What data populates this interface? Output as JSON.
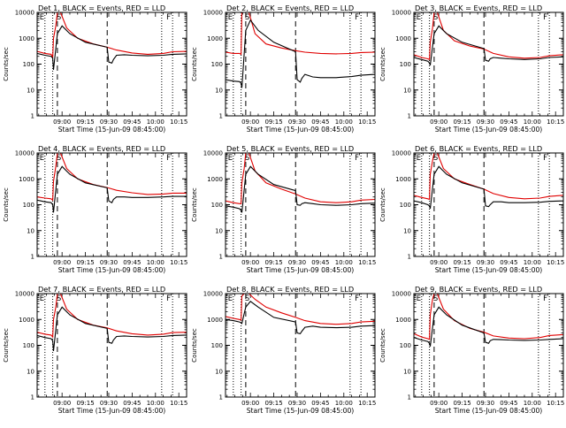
{
  "colors": {
    "background": "#ffffff",
    "axes": "#000000",
    "events": "#000000",
    "lld": "#e00000"
  },
  "shared": {
    "xlabel": "Start Time (15-Jun-09 08:45:00)",
    "ylabel": "Counts/sec",
    "x_tick_labels": [
      "09:00",
      "09:15",
      "09:30",
      "09:45",
      "10:00",
      "10:15"
    ],
    "y_tick_labels": [
      "1",
      "10",
      "100",
      "1000",
      "10000"
    ],
    "marker_E": "E",
    "marker_S": "S",
    "marker_F": "F"
  },
  "chart_data": [
    {
      "type": "line",
      "title": "Det 1, BLACK = Events, RED = LLD",
      "x_unit": "minutes after 08:45:00",
      "xlim": [
        -1,
        95
      ],
      "ylim": [
        1,
        10000
      ],
      "yscale": "log",
      "dotted_lines": [
        4,
        9,
        79,
        86
      ],
      "dashed_lines": [
        12,
        44
      ],
      "marker_positions": {
        "E": 0,
        "S": 12,
        "F": 86
      },
      "series": [
        {
          "x": [
            -1,
            4,
            8,
            9,
            9.5,
            11,
            12,
            14,
            18,
            25,
            35,
            44,
            50,
            60,
            70,
            80,
            86,
            95
          ],
          "values": [
            310,
            260,
            240,
            180,
            1000,
            3000,
            10000,
            10000,
            2500,
            1000,
            600,
            450,
            350,
            270,
            240,
            260,
            300,
            310
          ]
        },
        {
          "x": [
            -1,
            4,
            8,
            9,
            9.5,
            12,
            15,
            20,
            30,
            44,
            45,
            47,
            48,
            50,
            55,
            60,
            70,
            80,
            86,
            95
          ],
          "values": [
            260,
            220,
            200,
            170,
            60,
            1500,
            3000,
            1500,
            700,
            450,
            120,
            110,
            150,
            220,
            230,
            220,
            210,
            220,
            240,
            250
          ]
        }
      ]
    },
    {
      "type": "line",
      "title": "Det 2, BLACK = Events, RED = LLD",
      "x_unit": "minutes after 08:45:00",
      "xlim": [
        -1,
        95
      ],
      "ylim": [
        1,
        10000
      ],
      "yscale": "log",
      "dotted_lines": [
        4,
        9,
        79,
        86
      ],
      "dashed_lines": [
        12,
        44
      ],
      "marker_positions": {
        "E": 0,
        "S": 12,
        "F": 86
      },
      "series": [
        {
          "x": [
            -1,
            4,
            8,
            9,
            9.5,
            11,
            12,
            14,
            18,
            25,
            35,
            44,
            50,
            60,
            70,
            80,
            86,
            95
          ],
          "values": [
            290,
            260,
            260,
            240,
            10000,
            10000,
            10000,
            10000,
            1500,
            600,
            420,
            330,
            290,
            260,
            250,
            260,
            280,
            290
          ]
        },
        {
          "x": [
            -1,
            4,
            8,
            9,
            9.5,
            12,
            15,
            20,
            30,
            44,
            45,
            47,
            48,
            50,
            55,
            60,
            70,
            80,
            86,
            95
          ],
          "values": [
            25,
            22,
            21,
            18,
            12,
            2000,
            5000,
            2000,
            700,
            300,
            25,
            20,
            28,
            40,
            32,
            30,
            30,
            33,
            37,
            40
          ]
        }
      ]
    },
    {
      "type": "line",
      "title": "Det 3, BLACK = Events, RED = LLD",
      "x_unit": "minutes after 08:45:00",
      "xlim": [
        -1,
        95
      ],
      "ylim": [
        1,
        10000
      ],
      "yscale": "log",
      "dotted_lines": [
        4,
        9,
        79,
        86
      ],
      "dashed_lines": [
        12,
        44
      ],
      "marker_positions": {
        "E": 0,
        "S": 12,
        "F": 86
      },
      "series": [
        {
          "x": [
            -1,
            4,
            8,
            9,
            9.5,
            11,
            12,
            14,
            18,
            25,
            35,
            44,
            50,
            60,
            70,
            80,
            86,
            95
          ],
          "values": [
            230,
            180,
            160,
            150,
            700,
            2500,
            10000,
            10000,
            2000,
            800,
            500,
            380,
            260,
            190,
            170,
            180,
            210,
            230
          ]
        },
        {
          "x": [
            -1,
            4,
            8,
            9,
            9.5,
            12,
            15,
            20,
            30,
            44,
            45,
            47,
            48,
            50,
            55,
            60,
            70,
            80,
            86,
            95
          ],
          "values": [
            180,
            150,
            130,
            110,
            90,
            1500,
            3000,
            1500,
            700,
            400,
            140,
            130,
            160,
            180,
            170,
            160,
            150,
            160,
            180,
            190
          ]
        }
      ]
    },
    {
      "type": "line",
      "title": "Det 4, BLACK = Events, RED = LLD",
      "x_unit": "minutes after 08:45:00",
      "xlim": [
        -1,
        95
      ],
      "ylim": [
        1,
        10000
      ],
      "yscale": "log",
      "dotted_lines": [
        4,
        9,
        79,
        86
      ],
      "dashed_lines": [
        12,
        44
      ],
      "marker_positions": {
        "E": 0,
        "S": 12,
        "F": 86
      },
      "series": [
        {
          "x": [
            -1,
            4,
            8,
            9,
            9.5,
            11,
            12,
            14,
            18,
            25,
            35,
            44,
            50,
            60,
            70,
            80,
            86,
            95
          ],
          "values": [
            200,
            180,
            170,
            150,
            800,
            3000,
            10000,
            10000,
            2500,
            1000,
            600,
            460,
            360,
            290,
            250,
            260,
            280,
            280
          ]
        },
        {
          "x": [
            -1,
            4,
            8,
            9,
            9.5,
            12,
            15,
            20,
            30,
            44,
            45,
            47,
            48,
            50,
            55,
            60,
            70,
            80,
            86,
            95
          ],
          "values": [
            150,
            130,
            120,
            100,
            50,
            1500,
            3000,
            1500,
            700,
            450,
            140,
            120,
            160,
            200,
            200,
            190,
            190,
            200,
            210,
            210
          ]
        }
      ]
    },
    {
      "type": "line",
      "title": "Det 5, BLACK = Events, RED = LLD",
      "x_unit": "minutes after 08:45:00",
      "xlim": [
        -1,
        95
      ],
      "ylim": [
        1,
        10000
      ],
      "yscale": "log",
      "dotted_lines": [
        4,
        9,
        79,
        86
      ],
      "dashed_lines": [
        12,
        44
      ],
      "marker_positions": {
        "E": 0,
        "S": 12,
        "F": 86
      },
      "series": [
        {
          "x": [
            -1,
            4,
            8,
            9,
            9.5,
            11,
            12,
            14,
            18,
            25,
            35,
            44,
            50,
            60,
            70,
            80,
            86,
            95
          ],
          "values": [
            140,
            120,
            110,
            110,
            700,
            2500,
            10000,
            10000,
            2000,
            700,
            400,
            260,
            180,
            130,
            120,
            130,
            150,
            160
          ]
        },
        {
          "x": [
            -1,
            4,
            8,
            9,
            9.5,
            12,
            15,
            20,
            30,
            44,
            45,
            47,
            48,
            50,
            55,
            60,
            70,
            80,
            86,
            95
          ],
          "values": [
            90,
            80,
            70,
            60,
            50,
            1500,
            3000,
            1500,
            600,
            350,
            100,
            95,
            110,
            120,
            110,
            100,
            95,
            100,
            110,
            115
          ]
        }
      ]
    },
    {
      "type": "line",
      "title": "Det 6, BLACK = Events, RED = LLD",
      "x_unit": "minutes after 08:45:00",
      "xlim": [
        -1,
        95
      ],
      "ylim": [
        1,
        10000
      ],
      "yscale": "log",
      "dotted_lines": [
        4,
        9,
        79,
        86
      ],
      "dashed_lines": [
        12,
        44
      ],
      "marker_positions": {
        "E": 0,
        "S": 12,
        "F": 86
      },
      "series": [
        {
          "x": [
            -1,
            4,
            8,
            9,
            9.5,
            11,
            12,
            14,
            18,
            25,
            35,
            44,
            50,
            60,
            70,
            80,
            86,
            95
          ],
          "values": [
            230,
            190,
            170,
            160,
            1500,
            5000,
            10000,
            10000,
            2500,
            1000,
            600,
            400,
            270,
            190,
            170,
            180,
            210,
            230
          ]
        },
        {
          "x": [
            -1,
            4,
            8,
            9,
            9.5,
            12,
            15,
            20,
            30,
            44,
            45,
            47,
            48,
            50,
            55,
            60,
            70,
            80,
            86,
            95
          ],
          "values": [
            140,
            120,
            100,
            90,
            70,
            1500,
            3000,
            1500,
            700,
            400,
            90,
            85,
            100,
            130,
            130,
            120,
            120,
            125,
            135,
            140
          ]
        }
      ]
    },
    {
      "type": "line",
      "title": "Det 7, BLACK = Events, RED = LLD",
      "x_unit": "minutes after 08:45:00",
      "xlim": [
        -1,
        95
      ],
      "ylim": [
        1,
        10000
      ],
      "yscale": "log",
      "dotted_lines": [
        4,
        9,
        79,
        86
      ],
      "dashed_lines": [
        12,
        44
      ],
      "marker_positions": {
        "E": 0,
        "S": 12,
        "F": 86
      },
      "series": [
        {
          "x": [
            -1,
            4,
            8,
            9,
            9.5,
            11,
            12,
            14,
            18,
            25,
            35,
            44,
            50,
            60,
            70,
            80,
            86,
            95
          ],
          "values": [
            320,
            270,
            250,
            210,
            1000,
            3000,
            10000,
            10000,
            2500,
            1000,
            600,
            470,
            360,
            280,
            250,
            270,
            310,
            320
          ]
        },
        {
          "x": [
            -1,
            4,
            8,
            9,
            9.5,
            12,
            15,
            20,
            30,
            44,
            45,
            47,
            48,
            50,
            55,
            60,
            70,
            80,
            86,
            95
          ],
          "values": [
            240,
            200,
            180,
            150,
            60,
            1500,
            3000,
            1500,
            700,
            450,
            130,
            120,
            160,
            220,
            230,
            220,
            210,
            220,
            240,
            250
          ]
        }
      ]
    },
    {
      "type": "line",
      "title": "Det 8, BLACK = Events, RED = LLD",
      "x_unit": "minutes after 08:45:00",
      "xlim": [
        -1,
        95
      ],
      "ylim": [
        1,
        10000
      ],
      "yscale": "log",
      "dotted_lines": [
        4,
        9,
        79,
        86
      ],
      "dashed_lines": [
        12,
        44
      ],
      "marker_positions": {
        "E": 0,
        "S": 12,
        "F": 86
      },
      "series": [
        {
          "x": [
            -1,
            4,
            8,
            9,
            9.5,
            11,
            12,
            14,
            18,
            25,
            35,
            44,
            50,
            60,
            70,
            80,
            86,
            95
          ],
          "values": [
            1300,
            1100,
            1000,
            950,
            8000,
            10000,
            10000,
            10000,
            6000,
            3000,
            1800,
            1200,
            900,
            700,
            650,
            700,
            800,
            850
          ]
        },
        {
          "x": [
            -1,
            4,
            8,
            9,
            9.5,
            12,
            15,
            20,
            30,
            44,
            45,
            47,
            48,
            50,
            55,
            60,
            70,
            80,
            86,
            95
          ],
          "values": [
            1000,
            900,
            800,
            750,
            700,
            3000,
            5000,
            3000,
            1200,
            800,
            300,
            280,
            350,
            500,
            550,
            500,
            480,
            500,
            550,
            580
          ]
        }
      ]
    },
    {
      "type": "line",
      "title": "Det 9, BLACK = Events, RED = LLD",
      "x_unit": "minutes after 08:45:00",
      "xlim": [
        -1,
        95
      ],
      "ylim": [
        1,
        10000
      ],
      "yscale": "log",
      "dotted_lines": [
        4,
        9,
        79,
        86
      ],
      "dashed_lines": [
        12,
        44
      ],
      "marker_positions": {
        "E": 0,
        "S": 12,
        "F": 86
      },
      "series": [
        {
          "x": [
            -1,
            4,
            8,
            9,
            9.5,
            11,
            12,
            14,
            18,
            25,
            35,
            44,
            50,
            60,
            70,
            80,
            86,
            95
          ],
          "values": [
            280,
            210,
            180,
            170,
            1500,
            6000,
            10000,
            10000,
            2500,
            900,
            450,
            320,
            230,
            190,
            180,
            200,
            240,
            260
          ]
        },
        {
          "x": [
            -1,
            4,
            8,
            9,
            9.5,
            12,
            15,
            20,
            30,
            44,
            45,
            47,
            48,
            50,
            55,
            60,
            70,
            80,
            86,
            95
          ],
          "values": [
            200,
            160,
            140,
            120,
            90,
            1500,
            3000,
            1500,
            600,
            300,
            130,
            120,
            150,
            170,
            165,
            160,
            155,
            160,
            170,
            180
          ]
        }
      ]
    }
  ]
}
